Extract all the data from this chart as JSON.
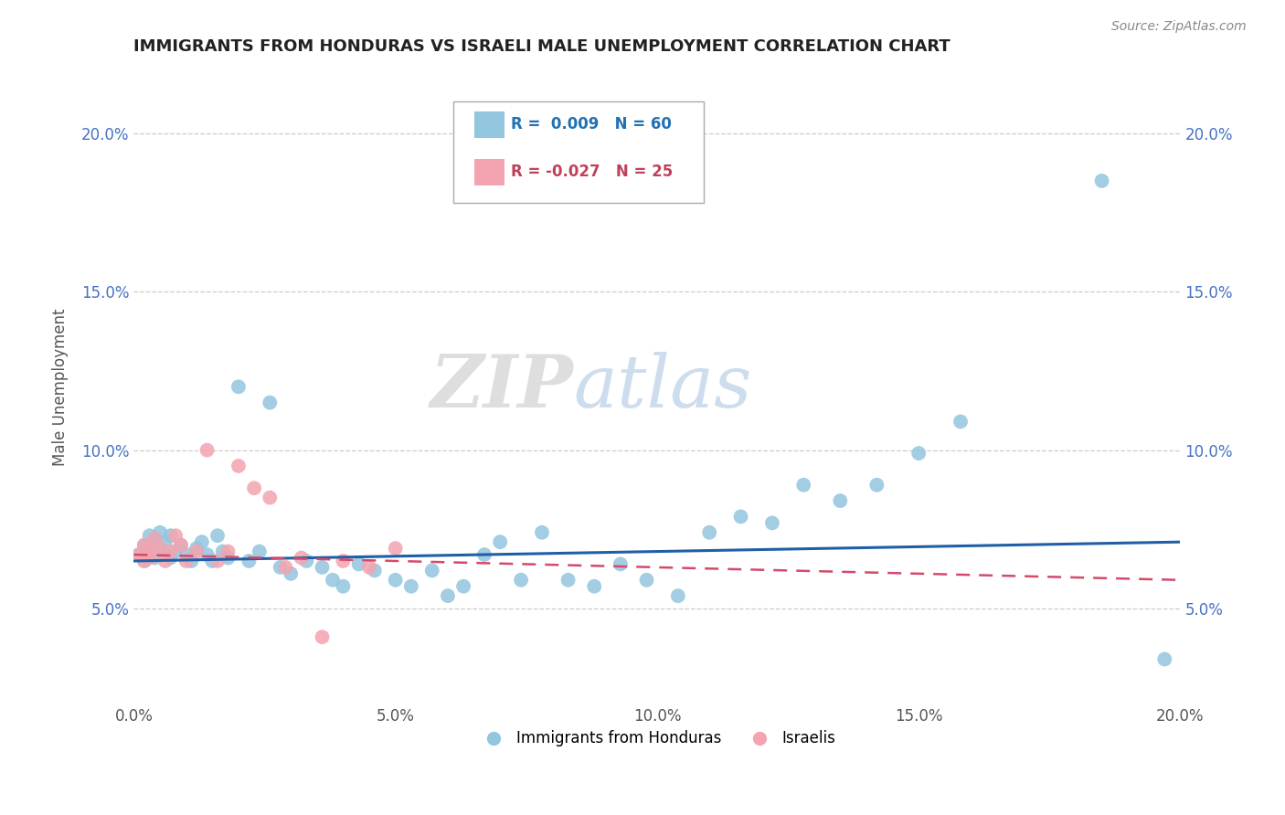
{
  "title": "IMMIGRANTS FROM HONDURAS VS ISRAELI MALE UNEMPLOYMENT CORRELATION CHART",
  "source": "Source: ZipAtlas.com",
  "ylabel": "Male Unemployment",
  "watermark": "ZIPatlas",
  "legend_blue_label": "Immigrants from Honduras",
  "legend_pink_label": "Israelis",
  "xlim": [
    0.0,
    0.2
  ],
  "ylim": [
    0.02,
    0.22
  ],
  "xticks": [
    0.0,
    0.05,
    0.1,
    0.15,
    0.2
  ],
  "yticks": [
    0.05,
    0.1,
    0.15,
    0.2
  ],
  "xtick_labels": [
    "0.0%",
    "5.0%",
    "10.0%",
    "15.0%",
    "20.0%"
  ],
  "ytick_labels": [
    "5.0%",
    "10.0%",
    "15.0%",
    "20.0%"
  ],
  "blue_color": "#92c5de",
  "pink_color": "#f4a4b0",
  "trendline_blue_color": "#1f5fa6",
  "trendline_pink_color": "#d44a6a",
  "blue_x": [
    0.001,
    0.002,
    0.002,
    0.003,
    0.003,
    0.004,
    0.004,
    0.005,
    0.005,
    0.006,
    0.006,
    0.007,
    0.007,
    0.008,
    0.009,
    0.01,
    0.011,
    0.012,
    0.013,
    0.014,
    0.015,
    0.016,
    0.017,
    0.018,
    0.02,
    0.022,
    0.024,
    0.026,
    0.028,
    0.03,
    0.033,
    0.036,
    0.038,
    0.04,
    0.043,
    0.046,
    0.05,
    0.053,
    0.057,
    0.06,
    0.063,
    0.067,
    0.07,
    0.074,
    0.078,
    0.083,
    0.088,
    0.093,
    0.098,
    0.104,
    0.11,
    0.116,
    0.122,
    0.128,
    0.135,
    0.142,
    0.15,
    0.158,
    0.185,
    0.197
  ],
  "blue_y": [
    0.067,
    0.065,
    0.07,
    0.068,
    0.073,
    0.066,
    0.072,
    0.069,
    0.074,
    0.067,
    0.071,
    0.073,
    0.066,
    0.068,
    0.07,
    0.067,
    0.065,
    0.069,
    0.071,
    0.067,
    0.065,
    0.073,
    0.068,
    0.066,
    0.12,
    0.065,
    0.068,
    0.115,
    0.063,
    0.061,
    0.065,
    0.063,
    0.059,
    0.057,
    0.064,
    0.062,
    0.059,
    0.057,
    0.062,
    0.054,
    0.057,
    0.067,
    0.071,
    0.059,
    0.074,
    0.059,
    0.057,
    0.064,
    0.059,
    0.054,
    0.074,
    0.079,
    0.077,
    0.089,
    0.084,
    0.089,
    0.099,
    0.109,
    0.185,
    0.034
  ],
  "pink_x": [
    0.001,
    0.002,
    0.002,
    0.003,
    0.003,
    0.004,
    0.005,
    0.006,
    0.007,
    0.008,
    0.009,
    0.01,
    0.012,
    0.014,
    0.016,
    0.018,
    0.02,
    0.023,
    0.026,
    0.029,
    0.032,
    0.036,
    0.04,
    0.045,
    0.05
  ],
  "pink_y": [
    0.067,
    0.065,
    0.07,
    0.068,
    0.066,
    0.072,
    0.069,
    0.065,
    0.068,
    0.073,
    0.07,
    0.065,
    0.068,
    0.1,
    0.065,
    0.068,
    0.095,
    0.088,
    0.085,
    0.063,
    0.066,
    0.041,
    0.065,
    0.063,
    0.069
  ]
}
